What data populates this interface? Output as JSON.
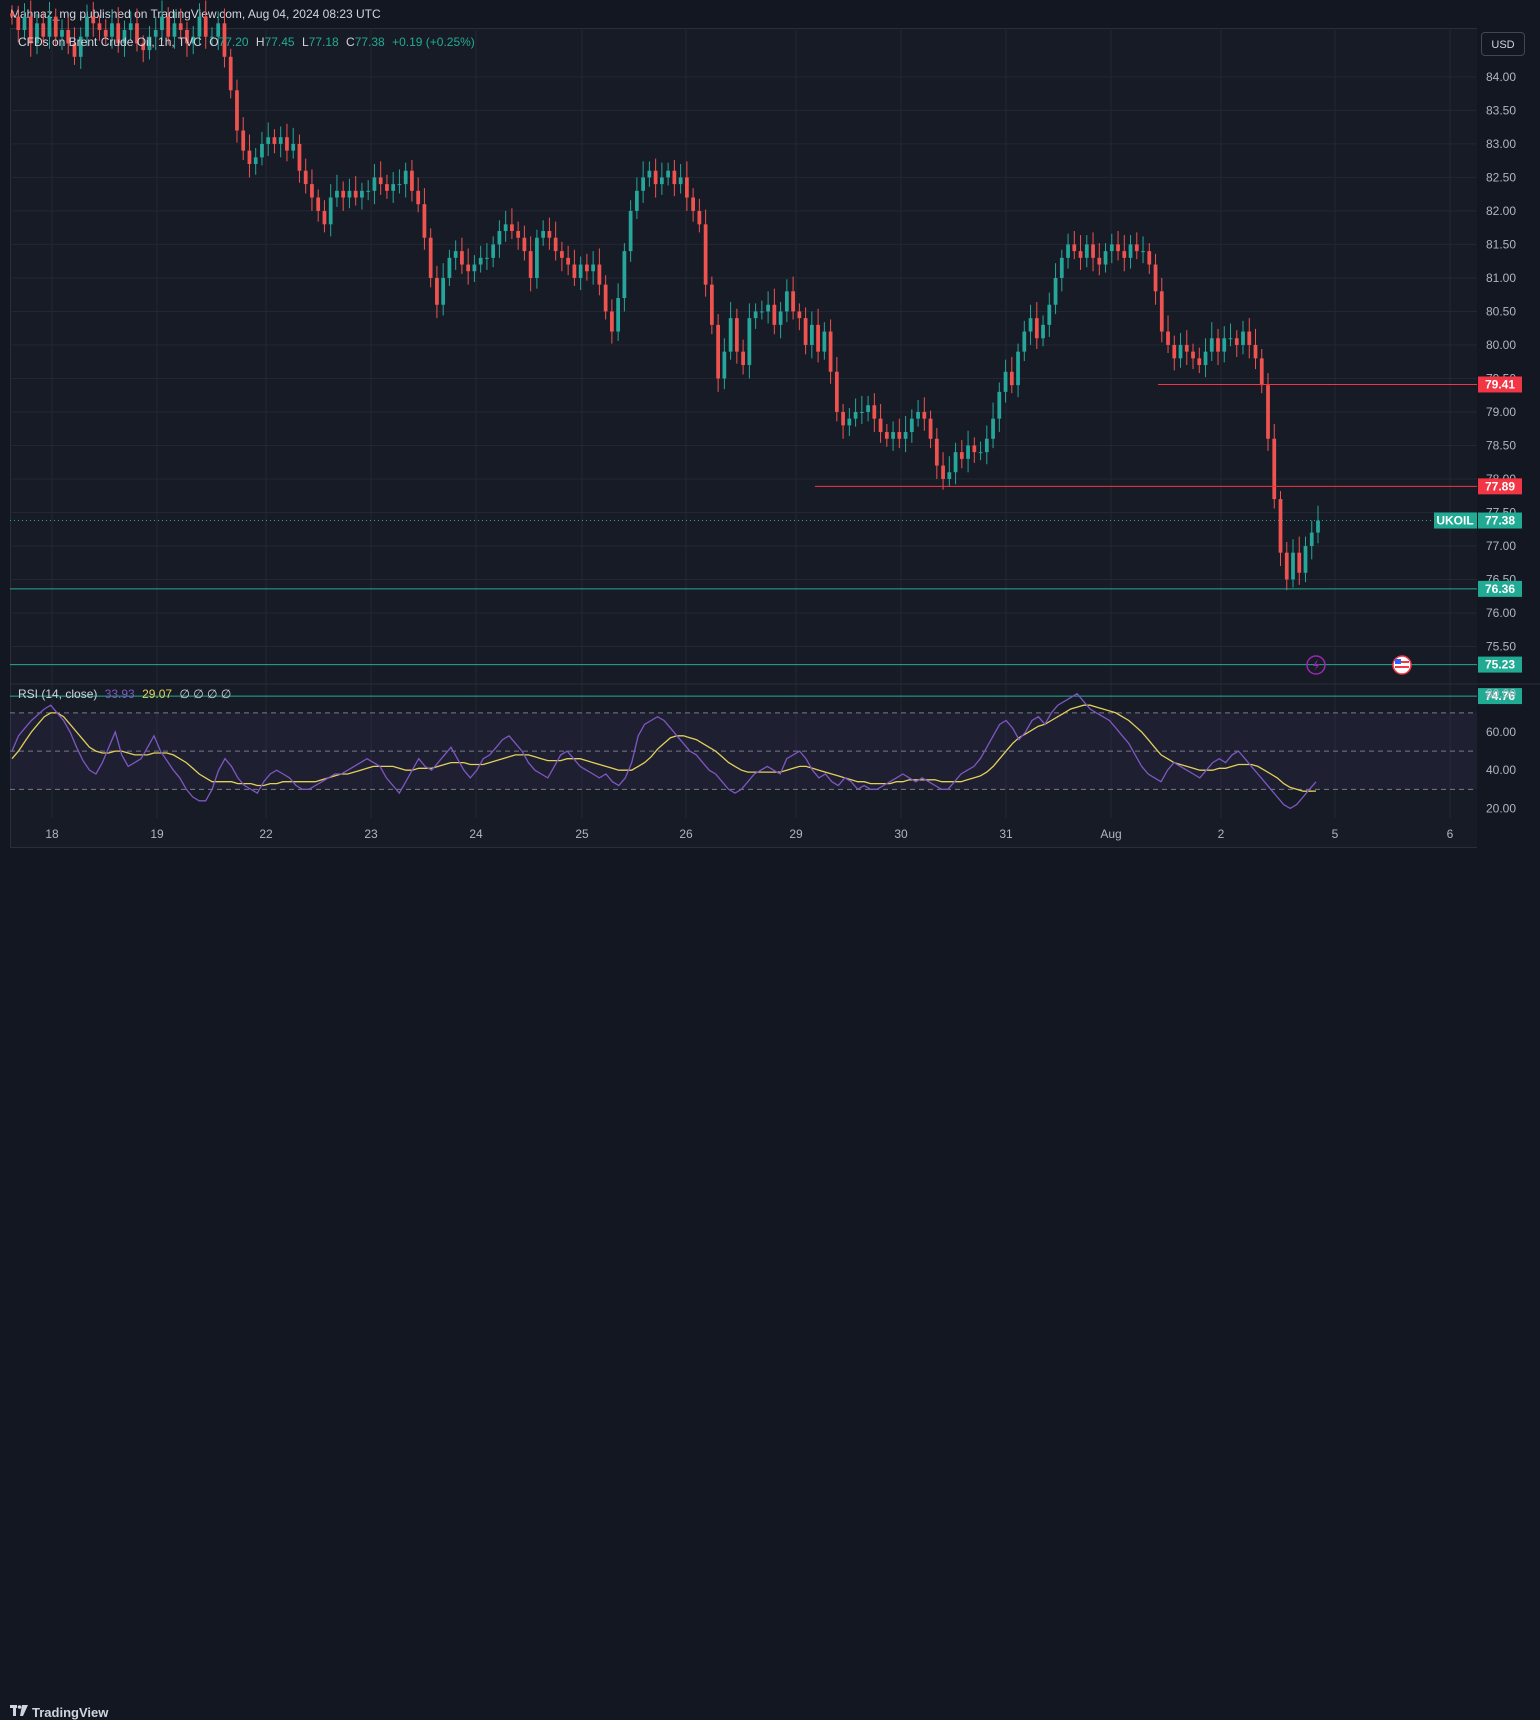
{
  "header": {
    "published": "Mahnaz_mg published on TradingView.com, Aug 04, 2024 08:23 UTC"
  },
  "legend": {
    "symbol": "CFDs on Brent Crude Oil, 1h, TVC",
    "o_label": "O",
    "o_value": "77.20",
    "h_label": "H",
    "h_value": "77.45",
    "l_label": "L",
    "l_value": "77.18",
    "c_label": "C",
    "c_value": "77.38",
    "change": "+0.19 (+0.25%)"
  },
  "rsi_legend": {
    "title": "RSI (14, close)",
    "rsi_value": "33.93",
    "ma_value": "29.07",
    "extras": "∅ ∅ ∅ ∅"
  },
  "currency_button": "USD",
  "footer": {
    "brand": "TradingView",
    "brand_icon": "tradingview-logo"
  },
  "colors": {
    "up": "#26a69a",
    "down": "#ef5350",
    "rsi_line": "#7e57c2",
    "rsi_ma": "#e1d05a",
    "level_red": "#f23645",
    "level_teal": "#22ab94"
  },
  "chart_data": [
    {
      "type": "candlestick",
      "title": "CFDs on Brent Crude Oil, 1h, TVC",
      "x_ticks": [
        "18",
        "19",
        "22",
        "23",
        "24",
        "25",
        "26",
        "29",
        "30",
        "31",
        "Aug",
        "2",
        "5",
        "6"
      ],
      "y_ticks": [
        "84.00",
        "83.50",
        "83.00",
        "82.50",
        "82.00",
        "81.50",
        "81.00",
        "80.50",
        "80.00",
        "79.50",
        "79.00",
        "78.50",
        "78.00",
        "77.50",
        "77.00",
        "76.50",
        "76.00",
        "75.50"
      ],
      "ylim": [
        75.0,
        84.7
      ],
      "closes": [
        84.9,
        84.7,
        84.9,
        84.5,
        84.8,
        84.6,
        84.9,
        84.6,
        84.7,
        84.5,
        84.3,
        84.6,
        84.9,
        84.8,
        84.7,
        84.6,
        84.8,
        84.5,
        84.7,
        84.8,
        84.5,
        84.4,
        84.6,
        84.7,
        84.9,
        84.6,
        84.8,
        84.7,
        84.5,
        84.6,
        84.9,
        84.6,
        84.6,
        84.8,
        84.3,
        83.8,
        83.2,
        82.9,
        82.7,
        82.8,
        83.0,
        83.1,
        83.0,
        83.1,
        82.9,
        83.0,
        82.6,
        82.4,
        82.2,
        82.0,
        81.8,
        82.2,
        82.3,
        82.2,
        82.3,
        82.2,
        82.3,
        82.3,
        82.5,
        82.4,
        82.3,
        82.4,
        82.4,
        82.6,
        82.3,
        82.1,
        81.6,
        81.0,
        80.6,
        81.0,
        81.3,
        81.4,
        81.2,
        81.1,
        81.2,
        81.3,
        81.3,
        81.5,
        81.7,
        81.8,
        81.7,
        81.6,
        81.4,
        81.0,
        81.6,
        81.7,
        81.6,
        81.4,
        81.3,
        81.2,
        81.0,
        81.2,
        81.1,
        81.2,
        80.9,
        80.5,
        80.2,
        80.7,
        81.4,
        82.0,
        82.3,
        82.5,
        82.6,
        82.4,
        82.5,
        82.6,
        82.4,
        82.5,
        82.2,
        82.0,
        81.8,
        80.9,
        80.3,
        79.5,
        79.9,
        80.4,
        79.9,
        79.7,
        80.4,
        80.5,
        80.5,
        80.6,
        80.3,
        80.5,
        80.8,
        80.5,
        80.4,
        80.0,
        80.3,
        79.9,
        80.2,
        79.6,
        79.0,
        78.8,
        78.9,
        79.0,
        79.0,
        79.1,
        78.9,
        78.7,
        78.6,
        78.7,
        78.6,
        78.7,
        78.9,
        79.0,
        78.9,
        78.6,
        78.2,
        78.0,
        78.1,
        78.4,
        78.3,
        78.5,
        78.4,
        78.4,
        78.6,
        78.9,
        79.3,
        79.6,
        79.4,
        79.9,
        80.2,
        80.4,
        80.1,
        80.3,
        80.6,
        81.0,
        81.3,
        81.5,
        81.4,
        81.3,
        81.5,
        81.3,
        81.2,
        81.4,
        81.5,
        81.4,
        81.3,
        81.5,
        81.4,
        81.4,
        81.2,
        80.8,
        80.2,
        80.0,
        79.8,
        80.0,
        79.9,
        79.8,
        79.7,
        79.9,
        80.1,
        79.9,
        80.1,
        80.1,
        80.0,
        80.2,
        80.0,
        79.8,
        79.4,
        78.6,
        77.7,
        76.9,
        76.5,
        76.9,
        76.6,
        77.0,
        77.2,
        77.38
      ],
      "levels": [
        79.41,
        77.89,
        76.36,
        75.23,
        74.76
      ],
      "level_labels": [
        "79.41",
        "77.89",
        "76.36",
        "75.23",
        "74.76"
      ],
      "last_symbol": "UKOIL",
      "last_price": "77.38"
    },
    {
      "type": "line",
      "title": "RSI (14, close)",
      "y_ticks": [
        "80.00",
        "60.00",
        "40.00",
        "20.00"
      ],
      "ylim": [
        15,
        83
      ],
      "bands": [
        70,
        50,
        30
      ],
      "series": [
        {
          "name": "RSI",
          "values": [
            50,
            58,
            62,
            66,
            69,
            72,
            74,
            70,
            66,
            60,
            52,
            45,
            40,
            38,
            44,
            52,
            60,
            48,
            42,
            44,
            46,
            52,
            58,
            50,
            45,
            40,
            36,
            30,
            26,
            24,
            24,
            30,
            40,
            46,
            42,
            36,
            32,
            30,
            28,
            34,
            38,
            40,
            38,
            36,
            32,
            30,
            30,
            32,
            34,
            36,
            38,
            38,
            40,
            42,
            44,
            46,
            44,
            42,
            36,
            32,
            28,
            34,
            40,
            46,
            42,
            40,
            44,
            48,
            52,
            46,
            40,
            36,
            40,
            46,
            48,
            52,
            56,
            58,
            54,
            50,
            44,
            40,
            38,
            36,
            42,
            48,
            50,
            46,
            42,
            40,
            38,
            36,
            38,
            34,
            32,
            36,
            44,
            58,
            64,
            66,
            68,
            66,
            62,
            58,
            54,
            50,
            48,
            44,
            40,
            38,
            34,
            30,
            28,
            30,
            34,
            38,
            40,
            42,
            40,
            38,
            46,
            48,
            50,
            46,
            40,
            36,
            38,
            34,
            32,
            36,
            34,
            30,
            32,
            30,
            30,
            32,
            34,
            36,
            38,
            36,
            34,
            36,
            34,
            32,
            30,
            30,
            34,
            38,
            40,
            42,
            46,
            52,
            58,
            64,
            66,
            62,
            56,
            60,
            66,
            68,
            64,
            70,
            74,
            76,
            78,
            80,
            76,
            72,
            70,
            68,
            66,
            62,
            58,
            54,
            48,
            42,
            38,
            36,
            34,
            40,
            44,
            42,
            40,
            38,
            36,
            40,
            44,
            46,
            44,
            48,
            50,
            46,
            42,
            38,
            34,
            30,
            26,
            22,
            20,
            22,
            26,
            30,
            33.93
          ]
        },
        {
          "name": "RSI-based MA",
          "values": [
            46,
            50,
            55,
            60,
            64,
            68,
            70,
            70,
            68,
            64,
            60,
            56,
            52,
            50,
            49,
            49,
            50,
            50,
            49,
            48,
            48,
            48,
            49,
            49,
            49,
            48,
            46,
            44,
            41,
            38,
            36,
            34,
            34,
            34,
            34,
            33,
            33,
            33,
            32,
            32,
            33,
            33,
            34,
            34,
            34,
            34,
            34,
            34,
            35,
            36,
            37,
            38,
            38,
            39,
            40,
            41,
            42,
            42,
            42,
            42,
            41,
            40,
            40,
            41,
            41,
            41,
            42,
            43,
            44,
            44,
            44,
            43,
            43,
            43,
            44,
            45,
            46,
            47,
            48,
            48,
            48,
            47,
            46,
            45,
            45,
            45,
            46,
            46,
            46,
            45,
            44,
            43,
            42,
            41,
            40,
            40,
            40,
            42,
            44,
            47,
            51,
            54,
            57,
            58,
            58,
            57,
            56,
            54,
            52,
            50,
            47,
            44,
            42,
            40,
            39,
            39,
            39,
            39,
            39,
            39,
            40,
            41,
            42,
            42,
            41,
            40,
            39,
            38,
            37,
            36,
            35,
            34,
            34,
            33,
            33,
            33,
            33,
            34,
            34,
            35,
            35,
            35,
            35,
            35,
            34,
            34,
            34,
            34,
            35,
            36,
            37,
            39,
            42,
            46,
            50,
            54,
            57,
            59,
            61,
            63,
            64,
            66,
            68,
            70,
            72,
            73,
            74,
            74,
            73,
            72,
            71,
            70,
            68,
            66,
            63,
            60,
            56,
            52,
            48,
            46,
            44,
            43,
            42,
            41,
            40,
            40,
            40,
            41,
            41,
            42,
            43,
            43,
            43,
            42,
            40,
            38,
            36,
            33,
            31,
            30,
            29,
            29,
            29.07
          ]
        }
      ]
    }
  ]
}
